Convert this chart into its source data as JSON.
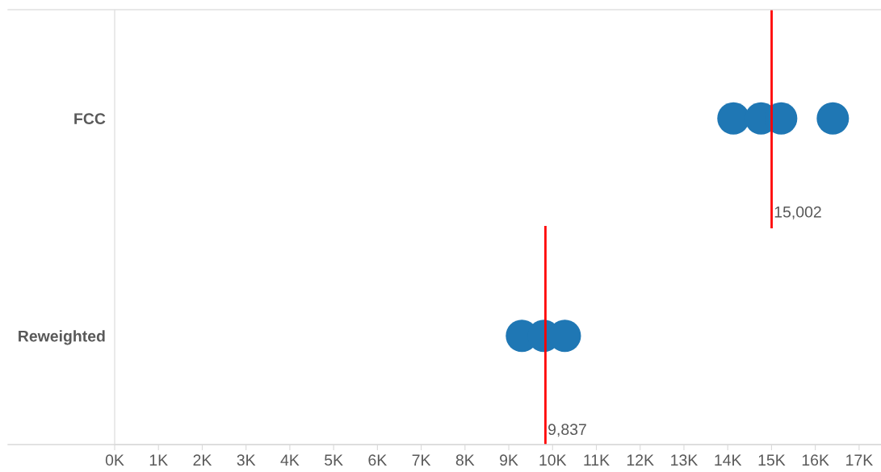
{
  "chart_data": {
    "type": "scatter",
    "orientation": "horizontal",
    "categories": [
      "FCC",
      "Reweighted"
    ],
    "series": [
      {
        "color": "#1f77b4",
        "values": [
          14.13,
          9.3
        ]
      },
      {
        "color": "#1f77b4",
        "values": [
          14.76,
          9.8
        ]
      },
      {
        "color": "#1f77b4",
        "values": [
          15.22,
          null
        ]
      },
      {
        "color": "#1f77b4",
        "values": [
          16.4,
          10.28
        ]
      }
    ],
    "xlim": [
      0,
      17.5
    ],
    "xticks": [
      {
        "value": 0,
        "label": "0K"
      },
      {
        "value": 1,
        "label": "1K"
      },
      {
        "value": 2,
        "label": "2K"
      },
      {
        "value": 3,
        "label": "3K"
      },
      {
        "value": 4,
        "label": "4K"
      },
      {
        "value": 5,
        "label": "5K"
      },
      {
        "value": 6,
        "label": "6K"
      },
      {
        "value": 7,
        "label": "7K"
      },
      {
        "value": 8,
        "label": "8K"
      },
      {
        "value": 9,
        "label": "9K"
      },
      {
        "value": 10,
        "label": "10K"
      },
      {
        "value": 11,
        "label": "11K"
      },
      {
        "value": 12,
        "label": "12K"
      },
      {
        "value": 13,
        "label": "13K"
      },
      {
        "value": 14,
        "label": "14K"
      },
      {
        "value": 15,
        "label": "15K"
      },
      {
        "value": 16,
        "label": "16K"
      },
      {
        "value": 17,
        "label": "17K"
      }
    ],
    "ref_lines": [
      {
        "axis": "x",
        "value": 15.002,
        "label": "15,002",
        "color": "#ff0000"
      },
      {
        "axis": "x",
        "value": 9.837,
        "label": "9,837",
        "color": "#ff0000"
      }
    ],
    "grid": false,
    "legend": false,
    "marker": "circle"
  }
}
